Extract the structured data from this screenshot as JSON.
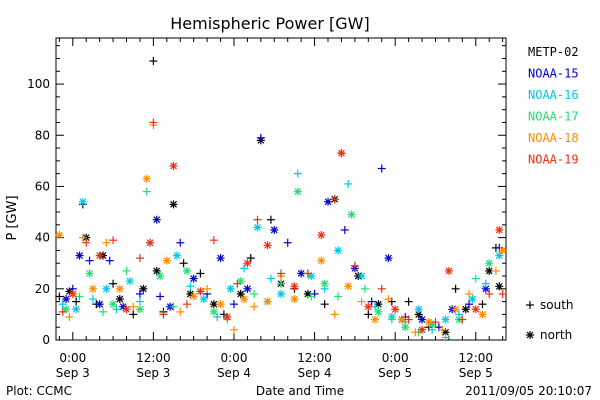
{
  "chart_data": {
    "type": "scatter",
    "title": "Hemispheric Power [GW]",
    "ylabel": "P [GW]",
    "xlabel": "Date and Time",
    "ylim": [
      0,
      118
    ],
    "yticks": [
      0,
      20,
      40,
      60,
      80,
      100
    ],
    "xrange_hours": [
      -2.5,
      64.5
    ],
    "xticks": [
      {
        "hour": 0,
        "time": "0:00",
        "date": "Sep 3"
      },
      {
        "hour": 12,
        "time": "12:00",
        "date": "Sep 3"
      },
      {
        "hour": 24,
        "time": "0:00",
        "date": "Sep 4"
      },
      {
        "hour": 36,
        "time": "12:00",
        "date": "Sep 4"
      },
      {
        "hour": 48,
        "time": "0:00",
        "date": "Sep 5"
      },
      {
        "hour": 60,
        "time": "12:00",
        "date": "Sep 5"
      }
    ],
    "marker_legend": [
      {
        "symbol": "+",
        "label": "south"
      },
      {
        "symbol": "*",
        "label": "north"
      }
    ],
    "series": [
      {
        "name": "METP-02",
        "color": "#000000",
        "points": [
          [
            -2.0,
            17,
            "+"
          ],
          [
            -0.5,
            19,
            "*"
          ],
          [
            0.5,
            15,
            "+"
          ],
          [
            1.5,
            53,
            "+"
          ],
          [
            2.0,
            40,
            "*"
          ],
          [
            3.5,
            14,
            "+"
          ],
          [
            4.5,
            33,
            "*"
          ],
          [
            6.0,
            22,
            "+"
          ],
          [
            7.0,
            16,
            "*"
          ],
          [
            9.0,
            10,
            "+"
          ],
          [
            10.5,
            20,
            "*"
          ],
          [
            12.0,
            109,
            "+"
          ],
          [
            12.5,
            27,
            "*"
          ],
          [
            13.5,
            11,
            "+"
          ],
          [
            15.0,
            53,
            "*"
          ],
          [
            16.5,
            30,
            "+"
          ],
          [
            17.5,
            18,
            "*"
          ],
          [
            19.0,
            26,
            "+"
          ],
          [
            21.0,
            14,
            "*"
          ],
          [
            22.5,
            10,
            "+"
          ],
          [
            25.0,
            18,
            "*"
          ],
          [
            26.5,
            32,
            "+"
          ],
          [
            28.0,
            78,
            "*"
          ],
          [
            29.5,
            47,
            "+"
          ],
          [
            31.0,
            22,
            "*"
          ],
          [
            33.0,
            20,
            "+"
          ],
          [
            35.0,
            18,
            "*"
          ],
          [
            37.5,
            14,
            "+"
          ],
          [
            39.0,
            55,
            "*"
          ],
          [
            40.0,
            73,
            "+"
          ],
          [
            42.5,
            25,
            "*"
          ],
          [
            44.0,
            10,
            "+"
          ],
          [
            45.5,
            14,
            "*"
          ],
          [
            47.5,
            15,
            "+"
          ],
          [
            49.0,
            8,
            "*"
          ],
          [
            50.0,
            15,
            "+"
          ],
          [
            51.5,
            10,
            "*"
          ],
          [
            53.0,
            5,
            "+"
          ],
          [
            55.5,
            3,
            "*"
          ],
          [
            57.0,
            20,
            "+"
          ],
          [
            58.5,
            12,
            "*"
          ],
          [
            61.0,
            14,
            "+"
          ],
          [
            62.0,
            27,
            "*"
          ],
          [
            63.0,
            36,
            "+"
          ],
          [
            63.5,
            21,
            "*"
          ]
        ]
      },
      {
        "name": "NOAA-15",
        "color": "#0000cc",
        "points": [
          [
            -1.0,
            16,
            "*"
          ],
          [
            0.0,
            20,
            "+"
          ],
          [
            1.0,
            33,
            "*"
          ],
          [
            2.5,
            31,
            "+"
          ],
          [
            4.0,
            14,
            "*"
          ],
          [
            5.5,
            31,
            "+"
          ],
          [
            7.5,
            13,
            "*"
          ],
          [
            10.0,
            18,
            "+"
          ],
          [
            12.5,
            47,
            "*"
          ],
          [
            13.0,
            17,
            "+"
          ],
          [
            14.5,
            13,
            "*"
          ],
          [
            16.0,
            38,
            "+"
          ],
          [
            18.0,
            24,
            "*"
          ],
          [
            20.0,
            18,
            "+"
          ],
          [
            22.0,
            32,
            "*"
          ],
          [
            24.0,
            14,
            "+"
          ],
          [
            26.0,
            20,
            "*"
          ],
          [
            28.0,
            79,
            "+"
          ],
          [
            30.0,
            43,
            "*"
          ],
          [
            32.0,
            38,
            "+"
          ],
          [
            34.0,
            26,
            "*"
          ],
          [
            36.0,
            18,
            "+"
          ],
          [
            38.0,
            54,
            "*"
          ],
          [
            40.5,
            43,
            "+"
          ],
          [
            42.0,
            28,
            "*"
          ],
          [
            44.5,
            15,
            "+"
          ],
          [
            46.0,
            67,
            "+"
          ],
          [
            47.0,
            32,
            "*"
          ],
          [
            49.5,
            9,
            "+"
          ],
          [
            52.0,
            8,
            "*"
          ],
          [
            54.5,
            5,
            "+"
          ],
          [
            56.5,
            12,
            "*"
          ],
          [
            59.0,
            14,
            "+"
          ],
          [
            61.5,
            20,
            "*"
          ],
          [
            63.5,
            36,
            "+"
          ]
        ]
      },
      {
        "name": "NOAA-16",
        "color": "#00c8e6",
        "points": [
          [
            -1.5,
            14,
            "+"
          ],
          [
            0.5,
            12,
            "*"
          ],
          [
            1.5,
            54,
            "*"
          ],
          [
            3.0,
            16,
            "+"
          ],
          [
            5.0,
            20,
            "*"
          ],
          [
            6.5,
            12,
            "+"
          ],
          [
            8.5,
            23,
            "*"
          ],
          [
            10.0,
            15,
            "+"
          ],
          [
            11.5,
            38,
            "*"
          ],
          [
            13.5,
            10,
            "+"
          ],
          [
            15.5,
            33,
            "*"
          ],
          [
            17.5,
            21,
            "+"
          ],
          [
            19.5,
            16,
            "*"
          ],
          [
            21.5,
            9,
            "+"
          ],
          [
            23.5,
            20,
            "*"
          ],
          [
            25.5,
            28,
            "+"
          ],
          [
            27.5,
            44,
            "*"
          ],
          [
            29.5,
            24,
            "+"
          ],
          [
            31.0,
            18,
            "*"
          ],
          [
            33.5,
            65,
            "+"
          ],
          [
            35.5,
            25,
            "*"
          ],
          [
            37.5,
            20,
            "+"
          ],
          [
            39.5,
            35,
            "*"
          ],
          [
            41.0,
            61,
            "+"
          ],
          [
            43.0,
            25,
            "*"
          ],
          [
            45.0,
            13,
            "+"
          ],
          [
            47.5,
            9,
            "*"
          ],
          [
            49.5,
            7,
            "+"
          ],
          [
            51.5,
            12,
            "*"
          ],
          [
            53.5,
            4,
            "+"
          ],
          [
            55.5,
            8,
            "*"
          ],
          [
            57.5,
            10,
            "+"
          ],
          [
            59.5,
            16,
            "*"
          ],
          [
            61.5,
            22,
            "+"
          ],
          [
            63.5,
            33,
            "*"
          ]
        ]
      },
      {
        "name": "NOAA-17",
        "color": "#20e070",
        "points": [
          [
            -1.0,
            12,
            "*"
          ],
          [
            1.0,
            17,
            "+"
          ],
          [
            2.5,
            26,
            "*"
          ],
          [
            4.5,
            11,
            "+"
          ],
          [
            6.0,
            14,
            "*"
          ],
          [
            8.0,
            27,
            "+"
          ],
          [
            10.0,
            12,
            "*"
          ],
          [
            11.0,
            58,
            "+"
          ],
          [
            13.0,
            25,
            "*"
          ],
          [
            15.0,
            13,
            "+"
          ],
          [
            17.0,
            27,
            "*"
          ],
          [
            19.0,
            19,
            "+"
          ],
          [
            21.0,
            11,
            "*"
          ],
          [
            23.0,
            8,
            "+"
          ],
          [
            25.0,
            23,
            "*"
          ],
          [
            27.0,
            18,
            "+"
          ],
          [
            29.0,
            15,
            "*"
          ],
          [
            31.0,
            22,
            "+"
          ],
          [
            33.5,
            58,
            "*"
          ],
          [
            35.5,
            17,
            "+"
          ],
          [
            37.5,
            22,
            "*"
          ],
          [
            39.5,
            17,
            "+"
          ],
          [
            41.5,
            49,
            "*"
          ],
          [
            43.5,
            20,
            "+"
          ],
          [
            45.5,
            11,
            "*"
          ],
          [
            47.5,
            8,
            "+"
          ],
          [
            49.5,
            5,
            "*"
          ],
          [
            51.5,
            3,
            "+"
          ],
          [
            53.5,
            6,
            "*"
          ],
          [
            55.5,
            1,
            "+"
          ],
          [
            57.5,
            8,
            "*"
          ],
          [
            60.0,
            24,
            "+"
          ],
          [
            62.0,
            30,
            "*"
          ]
        ]
      },
      {
        "name": "NOAA-18",
        "color": "#ff8c00",
        "points": [
          [
            -2.0,
            41,
            "*"
          ],
          [
            -0.5,
            9,
            "+"
          ],
          [
            1.5,
            40,
            "+"
          ],
          [
            3.0,
            20,
            "*"
          ],
          [
            5.0,
            38,
            "+"
          ],
          [
            7.0,
            20,
            "*"
          ],
          [
            9.0,
            13,
            "+"
          ],
          [
            11.0,
            63,
            "*"
          ],
          [
            12.0,
            84,
            "+"
          ],
          [
            14.0,
            31,
            "*"
          ],
          [
            16.0,
            11,
            "+"
          ],
          [
            18.0,
            17,
            "*"
          ],
          [
            20.0,
            20,
            "+"
          ],
          [
            22.0,
            14,
            "*"
          ],
          [
            24.0,
            4,
            "+"
          ],
          [
            25.5,
            16,
            "*"
          ],
          [
            27.0,
            13,
            "+"
          ],
          [
            29.0,
            15,
            "*"
          ],
          [
            31.0,
            25,
            "+"
          ],
          [
            33.0,
            16,
            "*"
          ],
          [
            35.0,
            26,
            "+"
          ],
          [
            37.0,
            31,
            "*"
          ],
          [
            39.0,
            10,
            "+"
          ],
          [
            41.0,
            21,
            "*"
          ],
          [
            43.0,
            15,
            "+"
          ],
          [
            45.0,
            8,
            "*"
          ],
          [
            47.0,
            16,
            "+"
          ],
          [
            49.0,
            8,
            "*"
          ],
          [
            51.0,
            3,
            "+"
          ],
          [
            53.0,
            7,
            "*"
          ],
          [
            55.0,
            4,
            "+"
          ],
          [
            57.0,
            12,
            "*"
          ],
          [
            59.0,
            18,
            "+"
          ],
          [
            61.0,
            10,
            "*"
          ],
          [
            63.0,
            27,
            "+"
          ],
          [
            64.0,
            35,
            "*"
          ]
        ]
      },
      {
        "name": "NOAA-19",
        "color": "#ee3010",
        "points": [
          [
            -1.5,
            11,
            "+"
          ],
          [
            0.0,
            18,
            "*"
          ],
          [
            2.0,
            38,
            "+"
          ],
          [
            4.0,
            33,
            "*"
          ],
          [
            6.0,
            39,
            "+"
          ],
          [
            8.0,
            12,
            "*"
          ],
          [
            10.0,
            32,
            "+"
          ],
          [
            11.5,
            38,
            "*"
          ],
          [
            12.0,
            85,
            "+"
          ],
          [
            13.5,
            10,
            "+"
          ],
          [
            15.0,
            68,
            "*"
          ],
          [
            17.0,
            14,
            "+"
          ],
          [
            19.0,
            19,
            "*"
          ],
          [
            21.0,
            39,
            "+"
          ],
          [
            23.0,
            9,
            "*"
          ],
          [
            24.5,
            22,
            "+"
          ],
          [
            26.0,
            30,
            "*"
          ],
          [
            27.5,
            47,
            "+"
          ],
          [
            29.0,
            37,
            "*"
          ],
          [
            31.0,
            26,
            "+"
          ],
          [
            33.0,
            21,
            "*"
          ],
          [
            35.0,
            26,
            "+"
          ],
          [
            37.0,
            41,
            "*"
          ],
          [
            39.0,
            55,
            "+"
          ],
          [
            40.0,
            73,
            "*"
          ],
          [
            42.0,
            29,
            "+"
          ],
          [
            44.0,
            13,
            "*"
          ],
          [
            46.0,
            20,
            "+"
          ],
          [
            48.0,
            12,
            "*"
          ],
          [
            50.0,
            8,
            "+"
          ],
          [
            52.0,
            4,
            "*"
          ],
          [
            54.0,
            7,
            "+"
          ],
          [
            56.0,
            27,
            "*"
          ],
          [
            58.0,
            8,
            "+"
          ],
          [
            60.0,
            12,
            "*"
          ],
          [
            62.0,
            18,
            "+"
          ],
          [
            63.5,
            43,
            "*"
          ],
          [
            64.0,
            18,
            "+"
          ]
        ]
      }
    ]
  },
  "footer": {
    "plot_credit": "Plot: CCMC",
    "timestamp": "2011/09/05 20:10:07"
  }
}
